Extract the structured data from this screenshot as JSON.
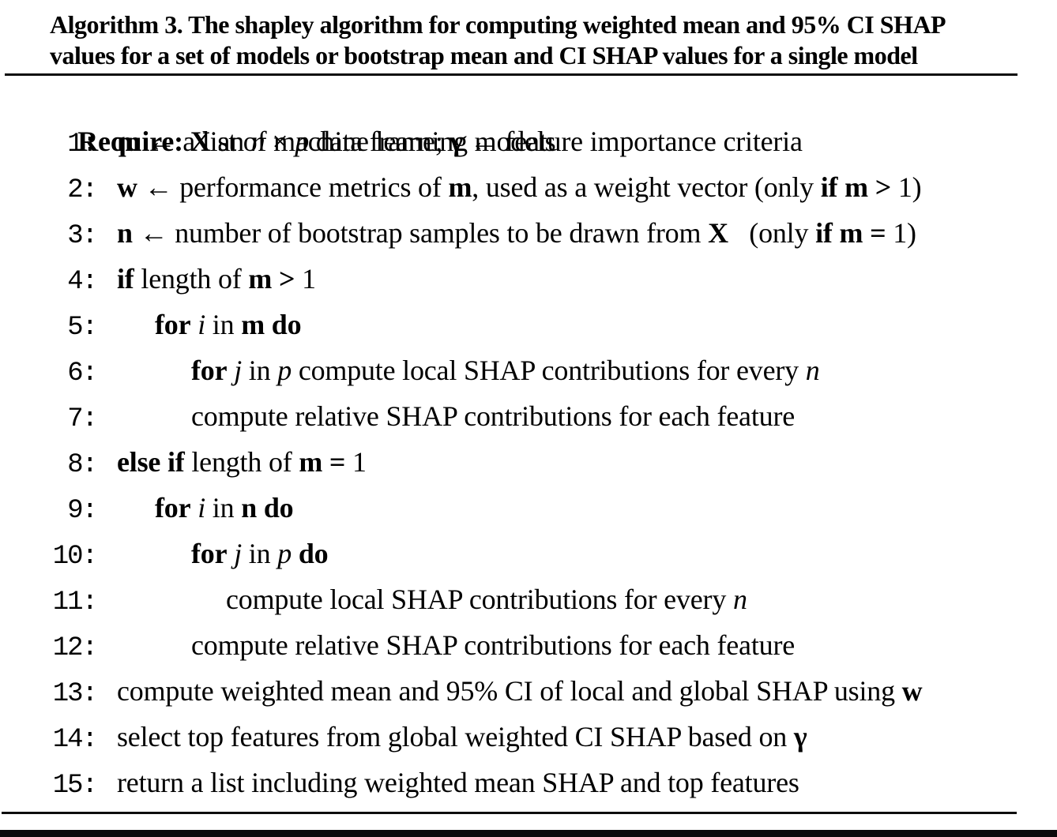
{
  "colors": {
    "text": "#000000",
    "background": "#ffffff",
    "rule": "#0d0d0d"
  },
  "algorithm": {
    "label": "Algorithm 3.",
    "title_line1": "Algorithm 3. The shapley algorithm for computing weighted mean and 95% CI SHAP",
    "title_line2": "values for a set of models or bootstrap mean and CI SHAP values for a single model",
    "require": [
      {
        "t": "Require: ",
        "s": "b"
      },
      {
        "t": "X",
        "s": "b"
      },
      {
        "t": " an ",
        "s": ""
      },
      {
        "t": "n",
        "s": "i"
      },
      {
        "t": " × ",
        "s": ""
      },
      {
        "t": "p",
        "s": "i"
      },
      {
        "t": " data frame; ",
        "s": ""
      },
      {
        "t": "γ",
        "s": "b"
      },
      {
        "t": " ← feature importance criteria",
        "s": ""
      }
    ],
    "lines": [
      {
        "number": "1:",
        "indent": 0,
        "segments": [
          {
            "t": "m",
            "s": "b"
          },
          {
            "t": " ← a list of machine learning models",
            "s": ""
          }
        ]
      },
      {
        "number": "2:",
        "indent": 0,
        "segments": [
          {
            "t": "w",
            "s": "b"
          },
          {
            "t": " ← performance metrics of ",
            "s": ""
          },
          {
            "t": "m",
            "s": "b"
          },
          {
            "t": ", used as a weight vector (only ",
            "s": ""
          },
          {
            "t": "if m >",
            "s": "b"
          },
          {
            "t": " 1)",
            "s": ""
          }
        ]
      },
      {
        "number": "3:",
        "indent": 0,
        "segments": [
          {
            "t": "n",
            "s": "b"
          },
          {
            "t": " ← number of bootstrap samples to be drawn from ",
            "s": ""
          },
          {
            "t": "X",
            "s": "b"
          },
          {
            "t": "   (only ",
            "s": ""
          },
          {
            "t": "if m =",
            "s": "b"
          },
          {
            "t": " 1)",
            "s": ""
          }
        ]
      },
      {
        "number": "4:",
        "indent": 0,
        "segments": [
          {
            "t": "if",
            "s": "b"
          },
          {
            "t": " length of ",
            "s": ""
          },
          {
            "t": "m >",
            "s": "b"
          },
          {
            "t": " 1",
            "s": ""
          }
        ]
      },
      {
        "number": "5:",
        "indent": 1,
        "segments": [
          {
            "t": "for",
            "s": "b"
          },
          {
            "t": " ",
            "s": ""
          },
          {
            "t": "i",
            "s": "i"
          },
          {
            "t": " in ",
            "s": ""
          },
          {
            "t": "m do",
            "s": "b"
          }
        ]
      },
      {
        "number": "6:",
        "indent": 2,
        "segments": [
          {
            "t": "for",
            "s": "b"
          },
          {
            "t": " ",
            "s": ""
          },
          {
            "t": "j",
            "s": "i"
          },
          {
            "t": " in ",
            "s": ""
          },
          {
            "t": "p",
            "s": "i"
          },
          {
            "t": " compute local SHAP contributions for every ",
            "s": ""
          },
          {
            "t": "n",
            "s": "i"
          }
        ]
      },
      {
        "number": "7:",
        "indent": 2,
        "segments": [
          {
            "t": "compute relative SHAP contributions for each feature",
            "s": ""
          }
        ]
      },
      {
        "number": "8:",
        "indent": 0,
        "segments": [
          {
            "t": "else if",
            "s": "b"
          },
          {
            "t": " length of ",
            "s": ""
          },
          {
            "t": "m =",
            "s": "b"
          },
          {
            "t": " 1",
            "s": ""
          }
        ]
      },
      {
        "number": "9:",
        "indent": 1,
        "segments": [
          {
            "t": "for",
            "s": "b"
          },
          {
            "t": " ",
            "s": ""
          },
          {
            "t": "i",
            "s": "i"
          },
          {
            "t": " in ",
            "s": ""
          },
          {
            "t": "n do",
            "s": "b"
          }
        ]
      },
      {
        "number": "10:",
        "indent": 2,
        "segments": [
          {
            "t": "for",
            "s": "b"
          },
          {
            "t": " ",
            "s": ""
          },
          {
            "t": "j",
            "s": "i"
          },
          {
            "t": " in ",
            "s": ""
          },
          {
            "t": "p",
            "s": "i"
          },
          {
            "t": " ",
            "s": ""
          },
          {
            "t": "do",
            "s": "b"
          }
        ]
      },
      {
        "number": "11:",
        "indent": 3,
        "segments": [
          {
            "t": "compute local SHAP contributions for every ",
            "s": ""
          },
          {
            "t": "n",
            "s": "i"
          }
        ]
      },
      {
        "number": "12:",
        "indent": 2,
        "segments": [
          {
            "t": "compute relative SHAP contributions for each feature",
            "s": ""
          }
        ]
      },
      {
        "number": "13:",
        "indent": 0,
        "segments": [
          {
            "t": "compute weighted mean and 95% CI of local and global SHAP using ",
            "s": ""
          },
          {
            "t": "w",
            "s": "b"
          }
        ]
      },
      {
        "number": "14:",
        "indent": 0,
        "segments": [
          {
            "t": "select top features from global weighted CI SHAP based on ",
            "s": ""
          },
          {
            "t": "γ",
            "s": "b"
          }
        ]
      },
      {
        "number": "15:",
        "indent": 0,
        "segments": [
          {
            "t": "return a list including weighted mean SHAP and top features",
            "s": ""
          }
        ]
      }
    ]
  }
}
